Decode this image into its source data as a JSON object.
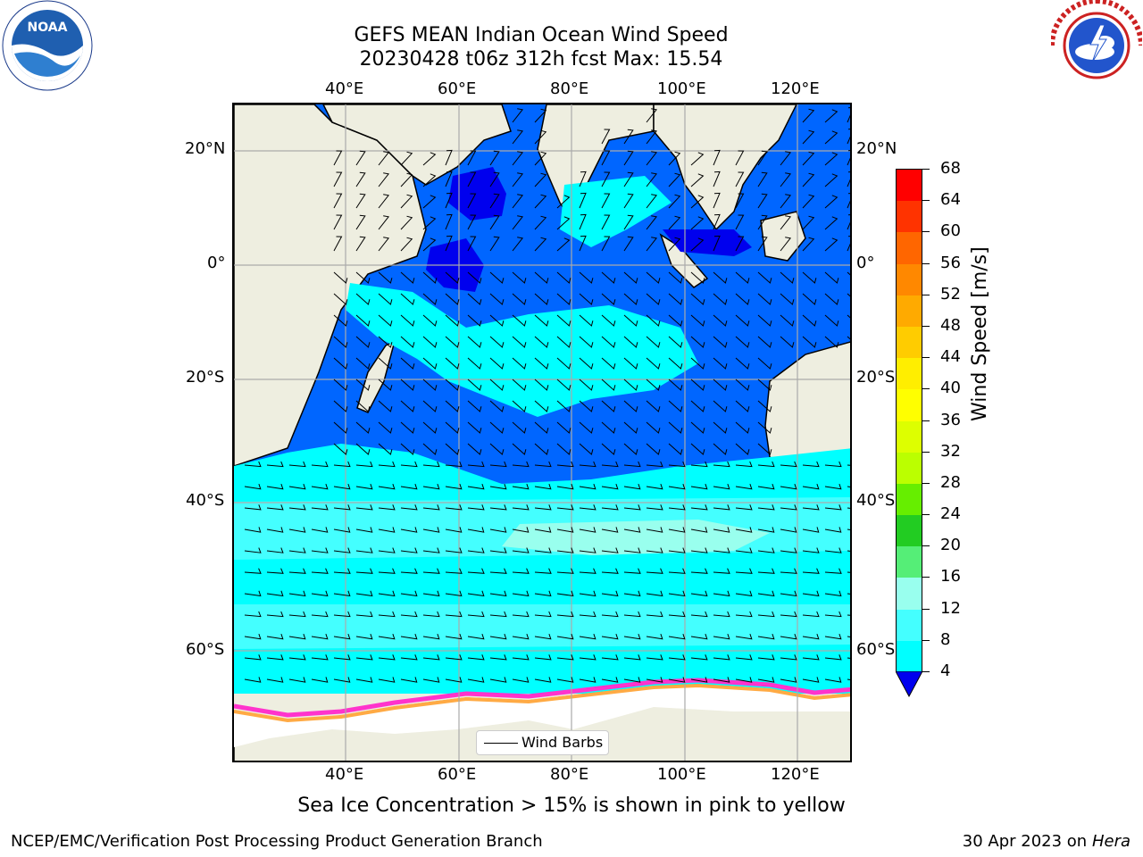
{
  "title": {
    "line1": "GEFS MEAN Indian Ocean Wind Speed",
    "line2": "20230428 t06z 312h fcst   Max: 15.54"
  },
  "logos": {
    "left": {
      "icon": "noaa-logo",
      "text": "NOAA"
    },
    "right": {
      "icon": "national-weather-service-logo",
      "ring_text": "NATIONAL WEATHER SERVICE"
    }
  },
  "map": {
    "lon_ticks": [
      "40°E",
      "60°E",
      "80°E",
      "100°E",
      "120°E"
    ],
    "lat_ticks": [
      "20°N",
      "0°",
      "20°S",
      "40°S",
      "60°S"
    ],
    "land_color": "#eeeee0",
    "ice_colors": [
      "#ff33cc",
      "#ffaa44",
      "#ffdd55"
    ]
  },
  "legend": {
    "label": "Wind Barbs"
  },
  "colorbar": {
    "title": "Wind Speed [m/s]",
    "ticks": [
      "68",
      "64",
      "60",
      "56",
      "52",
      "48",
      "44",
      "40",
      "36",
      "32",
      "28",
      "24",
      "20",
      "16",
      "12",
      "8",
      "4"
    ],
    "colors": [
      "#ff0000",
      "#ff3300",
      "#ff6600",
      "#ff8800",
      "#ffaa00",
      "#ffcc00",
      "#ffee00",
      "#ffff00",
      "#ddff00",
      "#bbff00",
      "#66ee00",
      "#22cc22",
      "#55ee77",
      "#99ffee",
      "#44ffff",
      "#00ffff",
      "#0066ff"
    ],
    "under_color": "#0000ee"
  },
  "footnote": "Sea Ice Concentration > 15% is shown in pink to yellow",
  "credits": {
    "left": "NCEP/EMC/Verification Post Processing Product Generation Branch",
    "right_date": "30 Apr 2023 on",
    "right_machine": "Hera"
  }
}
